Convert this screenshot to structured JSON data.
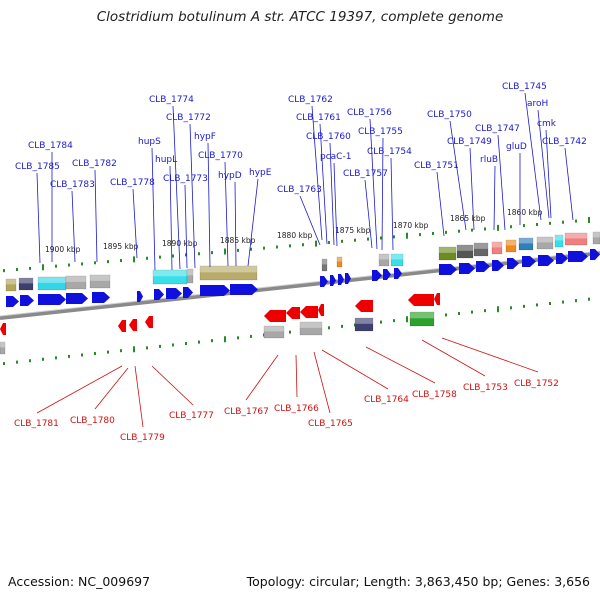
{
  "title": "Clostridium botulinum A str. ATCC 19397, complete genome",
  "footer": {
    "accession": "Accession: NC_009697",
    "summary": "Topology: circular; Length: 3,863,450 bp; Genes: 3,656"
  },
  "colors": {
    "forward_label": "#1a1acc",
    "reverse_label": "#cc1111",
    "forward_gene": "#1010dd",
    "reverse_gene": "#ee0000",
    "backbone": "#8a8a8a",
    "tick": "#2a8a2a"
  },
  "scale_labels": [
    {
      "text": "1900 kbp"
    },
    {
      "text": "1895 kbp"
    },
    {
      "text": "1890 kbp"
    },
    {
      "text": "1885 kbp"
    },
    {
      "text": "1880 kbp"
    },
    {
      "text": "1875 kbp"
    },
    {
      "text": "1870 kbp"
    },
    {
      "text": "1865 kbp"
    },
    {
      "text": "1860 kbp"
    }
  ],
  "forward_labels": [
    {
      "text": "CLB_1784"
    },
    {
      "text": "CLB_1785"
    },
    {
      "text": "CLB_1783"
    },
    {
      "text": "CLB_1782"
    },
    {
      "text": "CLB_1778"
    },
    {
      "text": "hupS"
    },
    {
      "text": "hupL"
    },
    {
      "text": "CLB_1774"
    },
    {
      "text": "CLB_1772"
    },
    {
      "text": "CLB_1773"
    },
    {
      "text": "hypF"
    },
    {
      "text": "CLB_1770"
    },
    {
      "text": "hypD"
    },
    {
      "text": "hypE"
    },
    {
      "text": "CLB_1762"
    },
    {
      "text": "CLB_1761"
    },
    {
      "text": "CLB_1760"
    },
    {
      "text": "pcaC-1"
    },
    {
      "text": "CLB_1763"
    },
    {
      "text": "CLB_1756"
    },
    {
      "text": "CLB_1755"
    },
    {
      "text": "CLB_1754"
    },
    {
      "text": "CLB_1757"
    },
    {
      "text": "CLB_1750"
    },
    {
      "text": "CLB_1751"
    },
    {
      "text": "CLB_1749"
    },
    {
      "text": "CLB_1747"
    },
    {
      "text": "rluB"
    },
    {
      "text": "gluD"
    },
    {
      "text": "CLB_1745"
    },
    {
      "text": "aroH"
    },
    {
      "text": "cmk"
    },
    {
      "text": "CLB_1742"
    }
  ],
  "reverse_labels": [
    {
      "text": "CLB_1781"
    },
    {
      "text": "CLB_1780"
    },
    {
      "text": "CLB_1779"
    },
    {
      "text": "CLB_1777"
    },
    {
      "text": "CLB_1767"
    },
    {
      "text": "CLB_1766"
    },
    {
      "text": "CLB_1765"
    },
    {
      "text": "CLB_1764"
    },
    {
      "text": "CLB_1758"
    },
    {
      "text": "CLB_1753"
    },
    {
      "text": "CLB_1752"
    }
  ]
}
